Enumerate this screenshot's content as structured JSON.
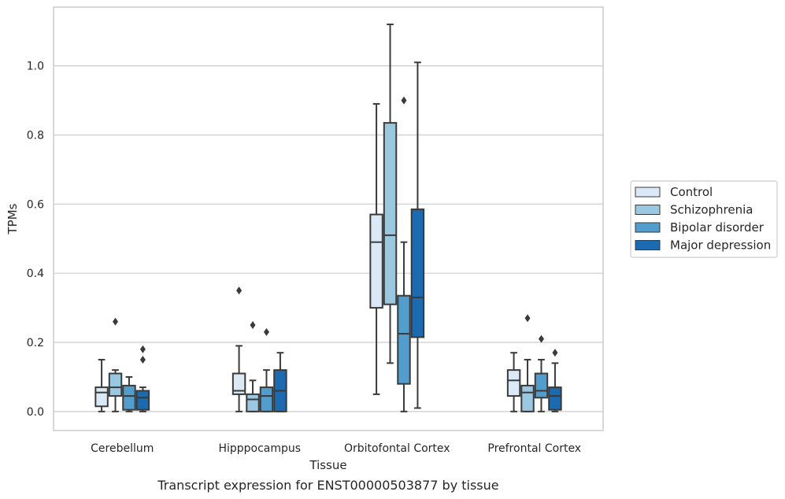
{
  "caption": "Transcript expression for ENST00000503877 by tissue",
  "chart_data": {
    "type": "box",
    "xlabel": "Tissue",
    "ylabel": "TPMs",
    "ylim": [
      -0.055,
      1.17
    ],
    "yticks": [
      "0.0",
      "0.2",
      "0.4",
      "0.6",
      "0.8",
      "1.0"
    ],
    "grid": "horizontal",
    "legend_position": "right",
    "categories": [
      "Cerebellum",
      "Hipppocampus",
      "Orbitofontal Cortex",
      "Prefrontal Cortex"
    ],
    "series": [
      {
        "name": "Control",
        "color": "#dbe9f6",
        "boxes": [
          {
            "whislo": 0.0,
            "q1": 0.015,
            "med": 0.055,
            "q3": 0.07,
            "whishi": 0.15,
            "fliers": []
          },
          {
            "whislo": 0.0,
            "q1": 0.05,
            "med": 0.06,
            "q3": 0.11,
            "whishi": 0.19,
            "fliers": [
              0.35
            ]
          },
          {
            "whislo": 0.05,
            "q1": 0.3,
            "med": 0.49,
            "q3": 0.57,
            "whishi": 0.89,
            "fliers": []
          },
          {
            "whislo": 0.0,
            "q1": 0.045,
            "med": 0.09,
            "q3": 0.12,
            "whishi": 0.17,
            "fliers": []
          }
        ]
      },
      {
        "name": "Schizophrenia",
        "color": "#9ac8e0",
        "boxes": [
          {
            "whislo": 0.0,
            "q1": 0.045,
            "med": 0.07,
            "q3": 0.11,
            "whishi": 0.12,
            "fliers": [
              0.26
            ]
          },
          {
            "whislo": 0.0,
            "q1": 0.0,
            "med": 0.035,
            "q3": 0.05,
            "whishi": 0.09,
            "fliers": [
              0.25
            ]
          },
          {
            "whislo": 0.14,
            "q1": 0.31,
            "med": 0.51,
            "q3": 0.835,
            "whishi": 1.12,
            "fliers": []
          },
          {
            "whislo": 0.0,
            "q1": 0.0,
            "med": 0.055,
            "q3": 0.075,
            "whishi": 0.15,
            "fliers": [
              0.27
            ]
          }
        ]
      },
      {
        "name": "Bipolar disorder",
        "color": "#529dcc",
        "boxes": [
          {
            "whislo": 0.0,
            "q1": 0.005,
            "med": 0.045,
            "q3": 0.075,
            "whishi": 0.1,
            "fliers": []
          },
          {
            "whislo": 0.0,
            "q1": 0.0,
            "med": 0.045,
            "q3": 0.07,
            "whishi": 0.12,
            "fliers": [
              0.23
            ]
          },
          {
            "whislo": 0.0,
            "q1": 0.08,
            "med": 0.225,
            "q3": 0.335,
            "whishi": 0.49,
            "fliers": [
              0.9
            ]
          },
          {
            "whislo": 0.0,
            "q1": 0.04,
            "med": 0.06,
            "q3": 0.11,
            "whishi": 0.15,
            "fliers": [
              0.21
            ]
          }
        ]
      },
      {
        "name": "Major depression",
        "color": "#1c6aaf",
        "boxes": [
          {
            "whislo": 0.0,
            "q1": 0.005,
            "med": 0.04,
            "q3": 0.06,
            "whishi": 0.07,
            "fliers": [
              0.15,
              0.18
            ]
          },
          {
            "whislo": 0.0,
            "q1": 0.0,
            "med": 0.06,
            "q3": 0.12,
            "whishi": 0.17,
            "fliers": []
          },
          {
            "whislo": 0.01,
            "q1": 0.215,
            "med": 0.33,
            "q3": 0.585,
            "whishi": 1.01,
            "fliers": []
          },
          {
            "whislo": 0.0,
            "q1": 0.005,
            "med": 0.045,
            "q3": 0.07,
            "whishi": 0.14,
            "fliers": [
              0.17
            ]
          }
        ]
      }
    ]
  }
}
